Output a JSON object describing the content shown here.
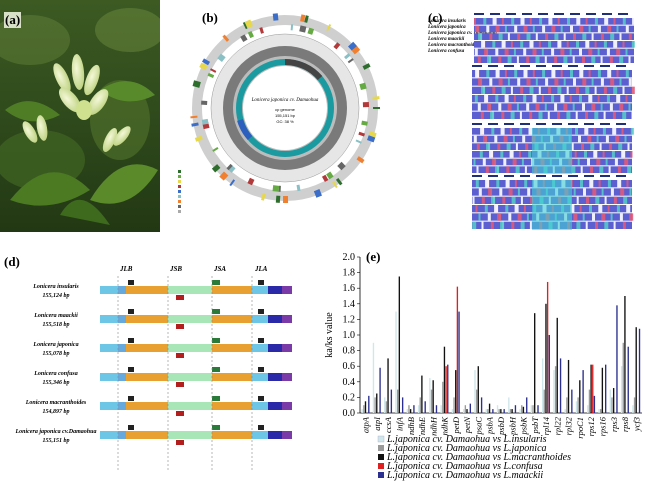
{
  "panel_labels": {
    "a": "(a)",
    "b": "(b)",
    "c": "(c)",
    "d": "(d)",
    "e": "(e)"
  },
  "genome_map": {
    "title": "Lonicera japonica cv. Damaohua",
    "subtitle": "cp genome",
    "length": "155,151 bp",
    "gc": "GC: 38 %"
  },
  "alignment": {
    "species": [
      "Lonicera insularis",
      "Lonicera japonica",
      "Lonicera japonica cv. Damaohua",
      "Lonicera maackii",
      "Lonicera macranthoides",
      "Lonicera confusa"
    ]
  },
  "boundary": {
    "headers": [
      "JLB",
      "JSB",
      "JSA",
      "JLA"
    ],
    "rows": [
      {
        "name": "Lonicera insularis",
        "size": "155,124 bp"
      },
      {
        "name": "Lonicera maackii",
        "size": "155,518 bp"
      },
      {
        "name": "Lonicera japonica",
        "size": "155,078 bp"
      },
      {
        "name": "Lonicera confusa",
        "size": "155,346 bp"
      },
      {
        "name": "Lonicera macranthoides",
        "size": "154,897 bp"
      },
      {
        "name": "Lonicera japonica cv.Damaohua",
        "size": "155,151 bp"
      }
    ]
  },
  "chart_data": {
    "type": "bar",
    "ylabel": "ka/ks value",
    "ylim": [
      0,
      2
    ],
    "yticks": [
      "0.0",
      "0.2",
      "0.4",
      "0.6",
      "0.8",
      "1.0",
      "1.2",
      "1.4",
      "1.6",
      "1.8",
      "2.0"
    ],
    "categories": [
      "atpA",
      "atpI",
      "ccsA",
      "infA",
      "ndhB",
      "ndhE",
      "ndhH",
      "ndhK",
      "petD",
      "petN",
      "psaC",
      "psbA",
      "psbD",
      "psbH",
      "psbK",
      "psbT",
      "rpl14",
      "rpl22",
      "rpl32",
      "rpoC1",
      "rps12",
      "rps16",
      "rps3",
      "rps8",
      "ycf3"
    ],
    "series": [
      {
        "name": "L.japonica cv. Damaohua vs L.insularis",
        "color": "#cfe6ea",
        "values": [
          0.05,
          0.9,
          0.2,
          1.3,
          0.05,
          0.1,
          0.45,
          0.1,
          0.05,
          0.05,
          0.55,
          0.05,
          0.1,
          0.2,
          0.05,
          0.1,
          0.7,
          0.55,
          0.05,
          0.15,
          0.1,
          0.05,
          0.3,
          0.6,
          0.1
        ]
      },
      {
        "name": "L.japonica cv. Damaohua vs L.japonica",
        "color": "#9a9a9a",
        "values": [
          0.1,
          0.2,
          0.15,
          0.3,
          0.1,
          0.2,
          0.3,
          0.4,
          0.2,
          0.1,
          0.3,
          0.05,
          0.05,
          0.05,
          0.1,
          0.1,
          0.3,
          0.6,
          0.2,
          0.2,
          0.3,
          0.05,
          0.2,
          0.9,
          0.2
        ]
      },
      {
        "name": "L.japonica cv. Damaohua vs L.macranthoides",
        "color": "#111111",
        "values": [
          0.15,
          0.25,
          0.7,
          1.75,
          0.05,
          0.48,
          0.42,
          0.85,
          0.55,
          0.05,
          0.6,
          0.12,
          0.05,
          0.05,
          0.08,
          1.28,
          1.4,
          1.22,
          0.68,
          0.42,
          0.62,
          0.58,
          0.32,
          1.5,
          1.1
        ]
      },
      {
        "name": "L.japonica cv. Damaohua vs L.confusa",
        "color": "#e02020",
        "values": [
          0.0,
          0.0,
          0.0,
          0.0,
          0.0,
          0.0,
          0.0,
          0.6,
          1.62,
          0.0,
          0.0,
          0.0,
          0.0,
          0.0,
          0.0,
          0.0,
          1.68,
          0.0,
          0.0,
          0.0,
          0.62,
          0.0,
          0.0,
          0.0,
          0.0
        ]
      },
      {
        "name": "L.japonica cv. Damaohua vs L.maackii",
        "color": "#2b2f8f",
        "values": [
          0.22,
          0.58,
          0.3,
          0.2,
          0.1,
          0.15,
          0.1,
          0.62,
          1.3,
          0.12,
          0.2,
          0.05,
          0.05,
          0.1,
          0.2,
          0.1,
          1.0,
          0.7,
          0.3,
          0.55,
          0.22,
          0.62,
          1.38,
          0.85,
          1.08
        ]
      }
    ],
    "legend_labels": [
      "L.japonica cv. Damaohua vs L.insularis",
      "L.japonica cv. Damaohua vs L.japonica",
      "L.japonica cv. Damaohua vs L.macranthoides",
      "L.japonica cv. Damaohua vs L.confusa",
      "L.japonica cv. Damaohua vs L.maackii"
    ]
  }
}
